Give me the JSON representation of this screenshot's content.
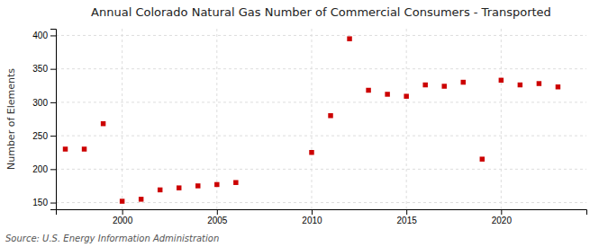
{
  "chart_data": {
    "type": "scatter",
    "title": "Annual Colorado Natural Gas Number of Commercial Consumers - Transported",
    "ylabel": "Number of Elements",
    "annotations": [
      "Source: U.S. Energy Information Administration"
    ],
    "x": [
      1997,
      1998,
      1999,
      2000,
      2001,
      2002,
      2003,
      2004,
      2005,
      2006,
      2010,
      2011,
      2012,
      2013,
      2014,
      2015,
      2016,
      2017,
      2018,
      2019,
      2020,
      2021,
      2022,
      2023
    ],
    "values": [
      230,
      230,
      268,
      152,
      155,
      169,
      172,
      175,
      177,
      180,
      225,
      280,
      395,
      318,
      312,
      309,
      326,
      324,
      330,
      215,
      333,
      326,
      328,
      323
    ],
    "color": "#cc0000",
    "marker": "square",
    "xlim": [
      1996.5,
      2024.5
    ],
    "xticks": [
      2000,
      2005,
      2010,
      2015,
      2020
    ],
    "ylim": [
      140,
      410
    ],
    "yticks": [
      150,
      200,
      250,
      300,
      350,
      400
    ],
    "grid": true
  }
}
